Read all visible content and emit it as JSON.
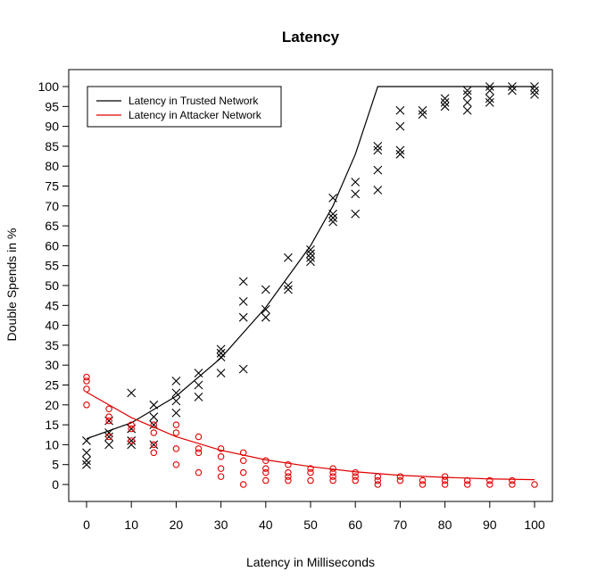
{
  "chart_data": {
    "type": "scatter",
    "title": "Latency",
    "xlabel": "Latency in Milliseconds",
    "ylabel": "Double Spends in %",
    "xlim": [
      0,
      100
    ],
    "ylim": [
      0,
      100
    ],
    "x_ticks": [
      0,
      10,
      20,
      30,
      40,
      50,
      60,
      70,
      80,
      90,
      100
    ],
    "y_ticks": [
      0,
      5,
      10,
      15,
      20,
      25,
      30,
      35,
      40,
      45,
      50,
      55,
      60,
      65,
      70,
      75,
      80,
      85,
      90,
      95,
      100
    ],
    "grid": false,
    "legend_position": "top-left",
    "legend": [
      {
        "label": "Latency in Trusted Network",
        "color": "#000000"
      },
      {
        "label": "Latency in Attacker Network",
        "color": "#e00000"
      }
    ],
    "series": [
      {
        "name": "Latency in Trusted Network",
        "marker": "x",
        "color": "#000000",
        "points": [
          [
            0,
            5
          ],
          [
            0,
            6
          ],
          [
            0,
            8
          ],
          [
            0,
            11
          ],
          [
            5,
            10
          ],
          [
            5,
            12
          ],
          [
            5,
            13
          ],
          [
            5,
            16
          ],
          [
            10,
            10
          ],
          [
            10,
            11
          ],
          [
            10,
            14
          ],
          [
            10,
            23
          ],
          [
            15,
            10
          ],
          [
            15,
            15
          ],
          [
            15,
            17
          ],
          [
            15,
            20
          ],
          [
            20,
            18
          ],
          [
            20,
            21
          ],
          [
            20,
            23
          ],
          [
            20,
            26
          ],
          [
            25,
            22
          ],
          [
            25,
            25
          ],
          [
            25,
            28
          ],
          [
            30,
            28
          ],
          [
            30,
            32
          ],
          [
            30,
            33
          ],
          [
            30,
            34
          ],
          [
            35,
            29
          ],
          [
            35,
            42
          ],
          [
            35,
            46
          ],
          [
            35,
            51
          ],
          [
            40,
            42
          ],
          [
            40,
            44
          ],
          [
            40,
            49
          ],
          [
            45,
            49
          ],
          [
            45,
            50
          ],
          [
            45,
            57
          ],
          [
            50,
            56
          ],
          [
            50,
            57
          ],
          [
            50,
            58
          ],
          [
            50,
            59
          ],
          [
            55,
            66
          ],
          [
            55,
            67
          ],
          [
            55,
            68
          ],
          [
            55,
            72
          ],
          [
            60,
            68
          ],
          [
            60,
            73
          ],
          [
            60,
            76
          ],
          [
            65,
            74
          ],
          [
            65,
            79
          ],
          [
            65,
            84
          ],
          [
            65,
            85
          ],
          [
            70,
            83
          ],
          [
            70,
            84
          ],
          [
            70,
            90
          ],
          [
            70,
            94
          ],
          [
            75,
            93
          ],
          [
            75,
            94
          ],
          [
            80,
            95
          ],
          [
            80,
            96
          ],
          [
            80,
            97
          ],
          [
            85,
            94
          ],
          [
            85,
            96
          ],
          [
            85,
            98
          ],
          [
            85,
            99
          ],
          [
            90,
            96
          ],
          [
            90,
            97
          ],
          [
            90,
            99
          ],
          [
            90,
            100
          ],
          [
            95,
            99
          ],
          [
            95,
            100
          ],
          [
            100,
            98
          ],
          [
            100,
            99
          ],
          [
            100,
            100
          ]
        ],
        "fit_line": [
          [
            0,
            11.5
          ],
          [
            10,
            15.5
          ],
          [
            20,
            22.2
          ],
          [
            30,
            31.8
          ],
          [
            40,
            44.5
          ],
          [
            50,
            60
          ],
          [
            55,
            70
          ],
          [
            60,
            83
          ],
          [
            65,
            100
          ],
          [
            100,
            100
          ]
        ]
      },
      {
        "name": "Latency in Attacker Network",
        "marker": "o",
        "color": "#e00000",
        "points": [
          [
            0,
            20
          ],
          [
            0,
            24
          ],
          [
            0,
            26
          ],
          [
            0,
            27
          ],
          [
            5,
            12
          ],
          [
            5,
            16
          ],
          [
            5,
            17
          ],
          [
            5,
            19
          ],
          [
            10,
            11
          ],
          [
            10,
            14
          ],
          [
            10,
            15
          ],
          [
            15,
            8
          ],
          [
            15,
            10
          ],
          [
            15,
            13
          ],
          [
            15,
            15
          ],
          [
            20,
            5
          ],
          [
            20,
            9
          ],
          [
            20,
            13
          ],
          [
            20,
            15
          ],
          [
            25,
            3
          ],
          [
            25,
            8
          ],
          [
            25,
            9
          ],
          [
            25,
            12
          ],
          [
            30,
            2
          ],
          [
            30,
            4
          ],
          [
            30,
            7
          ],
          [
            30,
            9
          ],
          [
            35,
            0
          ],
          [
            35,
            3
          ],
          [
            35,
            6
          ],
          [
            35,
            8
          ],
          [
            40,
            1
          ],
          [
            40,
            3
          ],
          [
            40,
            4
          ],
          [
            40,
            6
          ],
          [
            45,
            1
          ],
          [
            45,
            2
          ],
          [
            45,
            3
          ],
          [
            45,
            5
          ],
          [
            50,
            1
          ],
          [
            50,
            3
          ],
          [
            50,
            4
          ],
          [
            55,
            1
          ],
          [
            55,
            2
          ],
          [
            55,
            3
          ],
          [
            55,
            4
          ],
          [
            60,
            1
          ],
          [
            60,
            2
          ],
          [
            60,
            3
          ],
          [
            65,
            0
          ],
          [
            65,
            1
          ],
          [
            65,
            2
          ],
          [
            70,
            1
          ],
          [
            70,
            2
          ],
          [
            75,
            0
          ],
          [
            75,
            1
          ],
          [
            80,
            0
          ],
          [
            80,
            1
          ],
          [
            80,
            2
          ],
          [
            85,
            0
          ],
          [
            85,
            1
          ],
          [
            90,
            0
          ],
          [
            90,
            1
          ],
          [
            95,
            0
          ],
          [
            95,
            1
          ],
          [
            100,
            0
          ]
        ],
        "fit_line": [
          [
            0,
            23.2
          ],
          [
            10,
            16.8
          ],
          [
            20,
            12
          ],
          [
            30,
            8.6
          ],
          [
            40,
            6.2
          ],
          [
            50,
            4.5
          ],
          [
            60,
            3.2
          ],
          [
            70,
            2.3
          ],
          [
            80,
            1.8
          ],
          [
            90,
            1.4
          ],
          [
            100,
            1.2
          ]
        ]
      }
    ]
  }
}
